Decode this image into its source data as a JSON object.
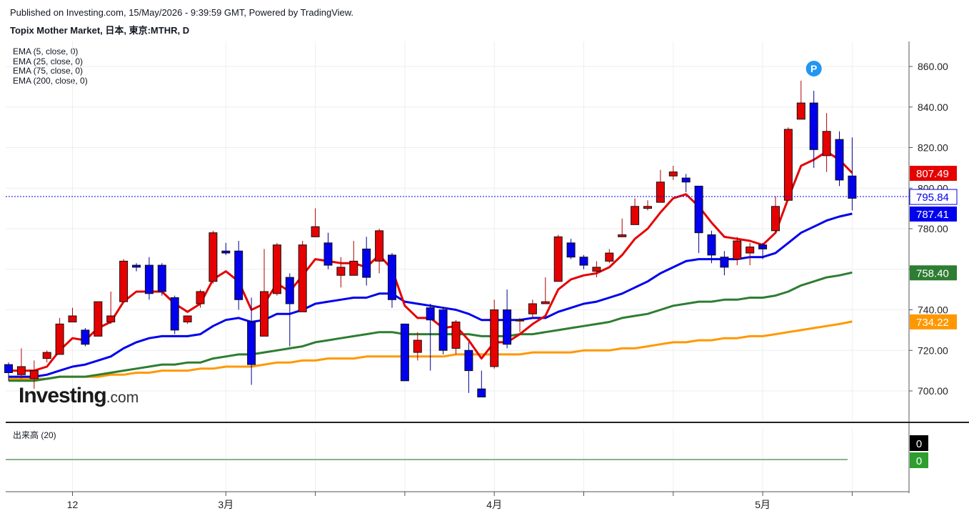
{
  "header": {
    "published": "Published on Investing.com, 15/May/2026 - 9:39:59 GMT, Powered by TradingView.",
    "symbol": "Topix Mother Market, 日本, 東京:MTHR, D"
  },
  "legend": {
    "ema": [
      "EMA (5, close, 0)",
      "EMA (25, close, 0)",
      "EMA (75, close, 0)",
      "EMA (200, close, 0)"
    ]
  },
  "volume_panel": {
    "label": "出来高 (20)",
    "value_labels": [
      "0",
      "0"
    ]
  },
  "logo": {
    "text": "Investing",
    "suffix": ".com"
  },
  "colors": {
    "up": "#e60000",
    "down": "#0000ee",
    "ema5": "#e60000",
    "ema25": "#0000ee",
    "ema75": "#2e7d32",
    "ema200": "#ff9800",
    "grid": "#eeeeee"
  },
  "chart_data": {
    "type": "candlestick",
    "ylim": [
      680,
      870
    ],
    "yticks": [
      "700.00",
      "720.00",
      "740.00",
      "760.00",
      "780.00",
      "800.00",
      "820.00",
      "840.00",
      "860.00"
    ],
    "xticks": [
      {
        "index": 5,
        "label": "12"
      },
      {
        "index": 17,
        "label": "3月"
      },
      {
        "index": 24,
        "label": ""
      },
      {
        "index": 31,
        "label": ""
      },
      {
        "index": 38,
        "label": "4月"
      },
      {
        "index": 45,
        "label": ""
      },
      {
        "index": 52,
        "label": ""
      },
      {
        "index": 59,
        "label": "5月"
      },
      {
        "index": 66,
        "label": ""
      }
    ],
    "candles": [
      [
        713,
        709,
        714,
        705
      ],
      [
        708,
        712,
        721,
        706
      ],
      [
        706,
        710,
        715,
        701
      ],
      [
        716,
        719,
        720,
        714
      ],
      [
        718,
        733,
        736,
        718
      ],
      [
        734,
        737,
        741,
        734
      ],
      [
        730,
        723,
        731,
        722
      ],
      [
        727,
        744,
        744,
        727
      ],
      [
        734,
        737,
        749,
        733
      ],
      [
        744,
        764,
        765,
        744
      ],
      [
        762,
        761,
        763,
        759
      ],
      [
        762,
        748,
        766,
        745
      ],
      [
        762,
        749,
        763,
        747
      ],
      [
        746,
        730,
        747,
        728
      ],
      [
        734,
        737,
        737,
        733
      ],
      [
        743,
        749,
        750,
        741
      ],
      [
        754,
        778,
        779,
        753
      ],
      [
        769,
        768,
        773,
        767
      ],
      [
        769,
        745,
        774,
        740
      ],
      [
        734,
        713,
        746,
        703
      ],
      [
        727,
        749,
        770,
        727
      ],
      [
        748,
        772,
        773,
        747
      ],
      [
        756,
        743,
        758,
        722
      ],
      [
        739,
        772,
        774,
        739
      ],
      [
        776,
        781,
        790,
        776
      ],
      [
        773,
        762,
        778,
        760
      ],
      [
        757,
        761,
        766,
        751
      ],
      [
        757,
        764,
        774,
        757
      ],
      [
        770,
        756,
        776,
        752
      ],
      [
        764,
        779,
        780,
        758
      ],
      [
        767,
        745,
        768,
        741
      ],
      [
        733,
        705,
        733,
        705
      ],
      [
        719,
        725,
        729,
        715
      ],
      [
        741,
        735,
        743,
        710
      ],
      [
        740,
        720,
        741,
        718
      ],
      [
        721,
        734,
        735,
        718
      ],
      [
        720,
        710,
        724,
        699
      ],
      [
        701,
        697,
        710,
        698
      ],
      [
        712,
        740,
        745,
        711
      ],
      [
        740,
        723,
        750,
        721
      ],
      [
        735,
        735,
        736,
        729
      ],
      [
        738,
        743,
        745,
        736
      ],
      [
        743,
        744,
        756,
        743
      ],
      [
        754,
        776,
        777,
        754
      ],
      [
        773,
        766,
        775,
        765
      ],
      [
        766,
        762,
        767,
        760
      ],
      [
        759,
        761,
        764,
        756
      ],
      [
        764,
        768,
        770,
        763
      ],
      [
        776,
        777,
        785,
        777
      ],
      [
        782,
        791,
        795,
        782
      ],
      [
        790,
        791,
        794,
        789
      ],
      [
        793,
        803,
        809,
        793
      ],
      [
        806,
        808,
        811,
        804
      ],
      [
        805,
        803,
        807,
        798
      ],
      [
        801,
        778,
        801,
        768
      ],
      [
        777,
        767,
        779,
        763
      ],
      [
        766,
        761,
        769,
        757
      ],
      [
        765,
        774,
        776,
        762
      ],
      [
        768,
        771,
        773,
        762
      ],
      [
        772,
        770,
        773,
        765
      ],
      [
        779,
        791,
        796,
        778
      ],
      [
        794,
        829,
        830,
        794
      ],
      [
        834,
        842,
        853,
        834
      ],
      [
        842,
        819,
        848,
        810
      ],
      [
        816,
        828,
        837,
        808
      ],
      [
        824,
        804,
        828,
        801
      ],
      [
        806,
        795,
        825,
        789
      ]
    ],
    "ema5": [
      710,
      710,
      710,
      712,
      720,
      726,
      725,
      731,
      734,
      744,
      749,
      749,
      749,
      743,
      739,
      743,
      755,
      759,
      754,
      740,
      743,
      753,
      749,
      757,
      765,
      764,
      763,
      763,
      761,
      767,
      760,
      742,
      736,
      736,
      731,
      732,
      725,
      716,
      724,
      724,
      728,
      733,
      737,
      750,
      755,
      757,
      758,
      761,
      767,
      775,
      780,
      788,
      795,
      797,
      791,
      783,
      776,
      775,
      774,
      772,
      778,
      795,
      811,
      814,
      818,
      814,
      807.49
    ],
    "ema25": [
      707,
      707,
      707,
      708,
      710,
      712,
      713,
      715,
      717,
      721,
      724,
      726,
      727,
      727,
      727,
      728,
      732,
      735,
      736,
      734,
      735,
      738,
      738,
      740,
      743,
      744,
      745,
      746,
      746,
      748,
      748,
      744,
      743,
      742,
      741,
      740,
      738,
      735,
      735,
      735,
      735,
      736,
      736,
      739,
      741,
      743,
      744,
      746,
      748,
      751,
      754,
      758,
      761,
      764,
      765,
      765,
      765,
      765,
      766,
      766,
      768,
      773,
      778,
      781,
      784,
      786,
      787.41
    ],
    "ema75": [
      705,
      705,
      705,
      706,
      707,
      707,
      707,
      708,
      709,
      710,
      711,
      712,
      713,
      713,
      714,
      714,
      716,
      717,
      718,
      718,
      719,
      720,
      721,
      722,
      724,
      725,
      726,
      727,
      728,
      729,
      729,
      728,
      728,
      728,
      728,
      728,
      728,
      727,
      727,
      727,
      728,
      728,
      729,
      730,
      731,
      732,
      733,
      734,
      736,
      737,
      738,
      740,
      742,
      743,
      744,
      744,
      745,
      745,
      746,
      746,
      747,
      749,
      752,
      754,
      756,
      757,
      758.4
    ],
    "ema200": [
      706,
      706,
      706,
      706,
      707,
      707,
      707,
      707,
      708,
      708,
      709,
      709,
      710,
      710,
      710,
      711,
      711,
      712,
      712,
      712,
      713,
      714,
      714,
      715,
      715,
      716,
      716,
      716,
      717,
      717,
      717,
      717,
      717,
      717,
      717,
      718,
      718,
      718,
      718,
      718,
      718,
      719,
      719,
      719,
      719,
      720,
      720,
      720,
      721,
      721,
      722,
      723,
      724,
      724,
      725,
      725,
      726,
      726,
      727,
      727,
      728,
      729,
      730,
      731,
      732,
      733,
      734.22
    ],
    "last_price": 795.84,
    "price_labels": [
      {
        "value": 807.49,
        "text": "807.49",
        "bg": "#e60000"
      },
      {
        "value": 795.84,
        "text": "795.84",
        "bg": "#ffffff",
        "fg": "#0000ee"
      },
      {
        "value": 787.41,
        "text": "787.41",
        "bg": "#0000ee"
      },
      {
        "value": 758.4,
        "text": "758.40",
        "bg": "#2e7d32"
      },
      {
        "value": 734.22,
        "text": "734.22",
        "bg": "#ff9800"
      }
    ],
    "marker": {
      "index": 63,
      "value": 860,
      "label": "P"
    }
  }
}
